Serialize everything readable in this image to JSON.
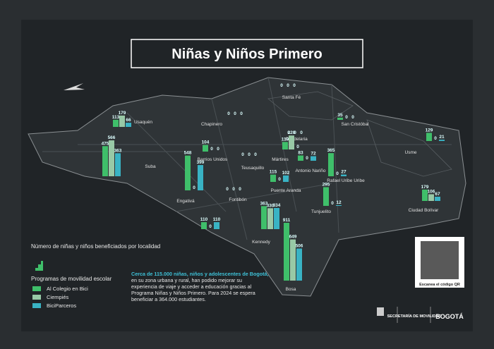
{
  "title": "Niñas y Niños Primero",
  "legend": {
    "title": "Número de niñas y niños beneficiados por localidad",
    "programs_title": "Programas de movilidad escolar",
    "programs": [
      {
        "name": "Al Colegio en Bici",
        "color": "#3fbf6a"
      },
      {
        "name": "Ciempiés",
        "color": "#98c9a6"
      },
      {
        "name": "BiciParceros",
        "color": "#39b3c4"
      }
    ]
  },
  "localities": [
    {
      "name": "Usaquén",
      "values": [
        113,
        179,
        66
      ]
    },
    {
      "name": "Chapinero",
      "values": [
        0,
        0,
        0
      ]
    },
    {
      "name": "Santa Fé",
      "values": [
        0,
        0,
        0
      ]
    },
    {
      "name": "San Cristóbal",
      "values": [
        35,
        0,
        0
      ]
    },
    {
      "name": "Usme",
      "values": [
        129,
        0,
        21
      ]
    },
    {
      "name": "Suba",
      "values": [
        475,
        566,
        363
      ]
    },
    {
      "name": "Engativá",
      "values": [
        548,
        0,
        399
      ]
    },
    {
      "name": "Barrios Unidos",
      "values": [
        104,
        0,
        0
      ]
    },
    {
      "name": "Teusaquillo",
      "values": [
        0,
        0,
        0
      ]
    },
    {
      "name": "Candelaria",
      "values": [
        0,
        0,
        0
      ]
    },
    {
      "name": "Mártires",
      "values": [
        119,
        220,
        0
      ]
    },
    {
      "name": "Antonio Nariño",
      "values": [
        83,
        0,
        72
      ]
    },
    {
      "name": "Rafael Uribe Uribe",
      "values": [
        365,
        0,
        27
      ]
    },
    {
      "name": "Puente Aranda",
      "values": [
        115,
        0,
        102
      ]
    },
    {
      "name": "Tunjuelito",
      "values": [
        295,
        0,
        12
      ]
    },
    {
      "name": "Fontibón",
      "values": [
        0,
        0,
        0
      ]
    },
    {
      "values": [
        110,
        0,
        110
      ]
    },
    {
      "name": "Kennedy",
      "values": [
        363,
        330,
        334
      ]
    },
    {
      "name": "Ciudad Bolívar",
      "values": [
        179,
        106,
        67
      ]
    },
    {
      "name": "Bosa",
      "values": [
        911,
        649,
        506
      ]
    }
  ],
  "note": {
    "highlight": "Cerca de 115.000 niñas, niños y adolescentes de Bogotá,",
    "text": "en su zona urbana y rural, han podido mejorar su experiencia de viaje y acceder a educación gracias al Programa Niñas y Niños Primero. Para 2024 se espera beneficiar a 364.000 estudiantes."
  },
  "qr_caption": "Escanea el código QR",
  "logos": [
    "SECRETARÍA DE MOVILIDAD",
    "BOGOTÁ"
  ]
}
